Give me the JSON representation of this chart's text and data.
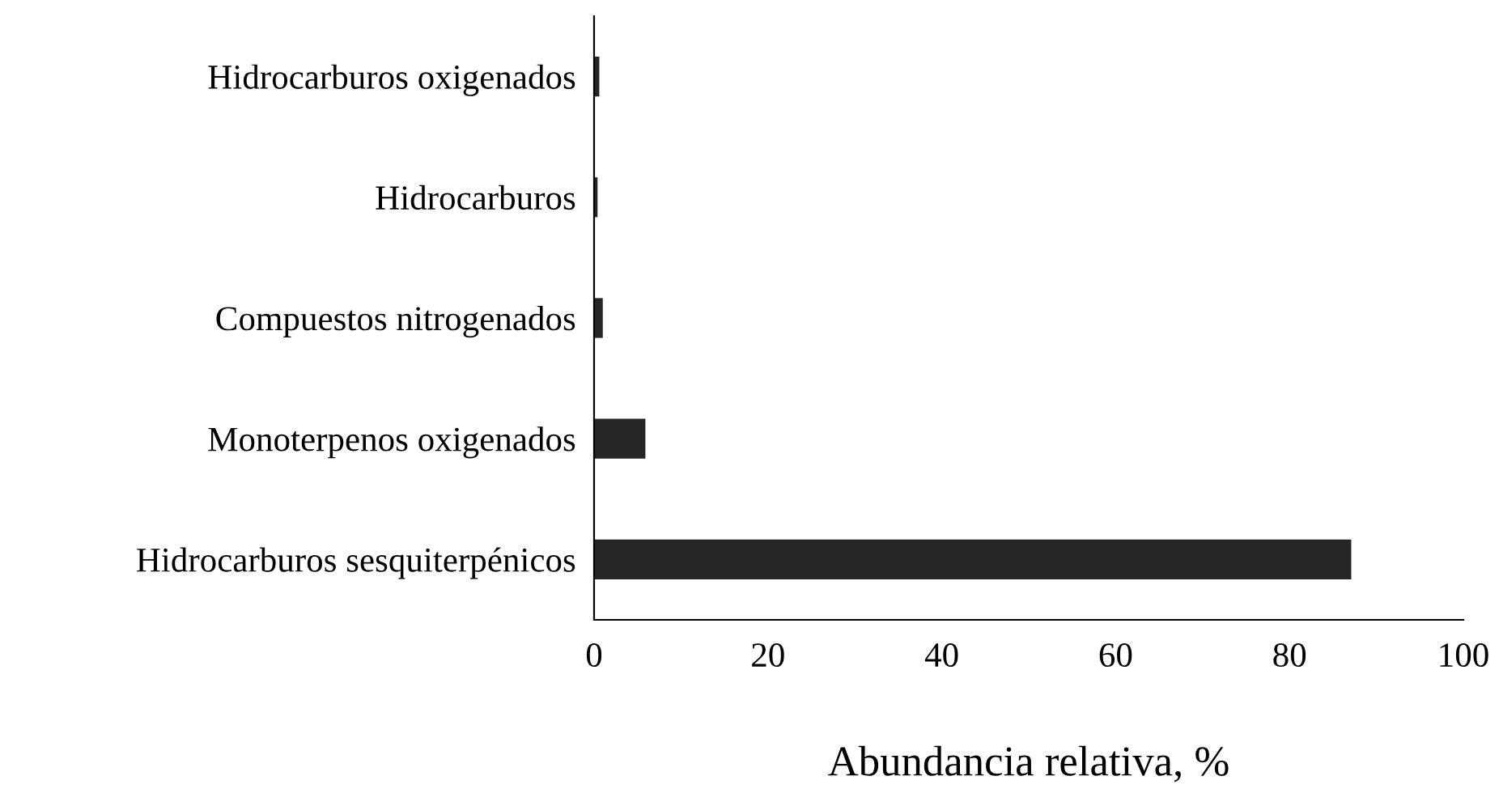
{
  "chart_data": {
    "type": "bar",
    "orientation": "horizontal",
    "xlabel": "Abundancia relativa, %",
    "categories": [
      "Hidrocarburos oxigenados",
      "Hidrocarburos",
      "Compuestos nitrogenados",
      "Monoterpenos oxigenados",
      "Hidrocarburos sesquiterpénicos"
    ],
    "values": [
      0.6,
      0.4,
      1.0,
      5.9,
      87.1
    ],
    "color": "#262626",
    "xlim": [
      0,
      100
    ],
    "xticks": [
      0,
      20,
      40,
      60,
      80,
      100
    ],
    "grid": false,
    "legend": false
  }
}
